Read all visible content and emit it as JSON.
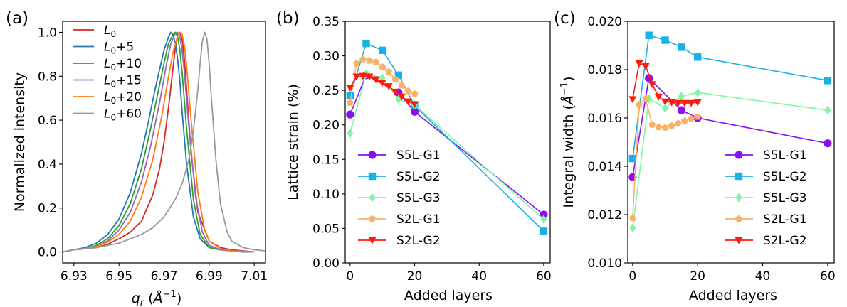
{
  "chart_data": [
    {
      "type": "line",
      "panel_label": "(a)",
      "xlabel": "q_r (Å⁻¹)",
      "ylabel": "Normalized intensity",
      "xlim": [
        6.925,
        7.015
      ],
      "ylim": [
        -0.05,
        1.05
      ],
      "xticks": [
        6.93,
        6.95,
        6.97,
        6.99,
        7.01
      ],
      "xtick_labels": [
        "6.93",
        "6.95",
        "6.97",
        "6.99",
        "7.01"
      ],
      "yticks": [
        0.0,
        0.2,
        0.4,
        0.6,
        0.8,
        1.0
      ],
      "ytick_labels": [
        "0.0",
        "0.2",
        "0.4",
        "0.6",
        "0.8",
        "1.0"
      ],
      "legend_position": "top-left",
      "series": [
        {
          "name": "L0",
          "legend_main": "L",
          "legend_sub": "0",
          "legend_rest": "",
          "color": "#d62728",
          "x": [
            6.925,
            6.93,
            6.935,
            6.94,
            6.945,
            6.95,
            6.955,
            6.96,
            6.965,
            6.968,
            6.97,
            6.972,
            6.974,
            6.975,
            6.976,
            6.977,
            6.978,
            6.979,
            6.98,
            6.982,
            6.985,
            6.99,
            6.995,
            7.0,
            7.005,
            7.01
          ],
          "y": [
            0.0,
            0.01,
            0.015,
            0.02,
            0.035,
            0.06,
            0.09,
            0.14,
            0.26,
            0.38,
            0.5,
            0.66,
            0.84,
            0.93,
            0.99,
            1.0,
            0.97,
            0.88,
            0.74,
            0.45,
            0.18,
            0.05,
            0.02,
            0.01,
            0.005,
            0.0
          ]
        },
        {
          "name": "L0+5",
          "legend_main": "L",
          "legend_sub": "0",
          "legend_rest": "+5",
          "color": "#1f77b4",
          "x": [
            6.925,
            6.93,
            6.935,
            6.94,
            6.945,
            6.95,
            6.955,
            6.96,
            6.963,
            6.966,
            6.968,
            6.97,
            6.972,
            6.973,
            6.974,
            6.975,
            6.976,
            6.977,
            6.978,
            6.98,
            6.983,
            6.986,
            6.99,
            6.995,
            7.0,
            7.005,
            7.01
          ],
          "y": [
            0.0,
            0.01,
            0.02,
            0.04,
            0.08,
            0.15,
            0.27,
            0.45,
            0.59,
            0.74,
            0.83,
            0.92,
            0.98,
            1.0,
            0.99,
            0.95,
            0.88,
            0.78,
            0.64,
            0.4,
            0.16,
            0.06,
            0.02,
            0.01,
            0.005,
            0.0,
            0.0
          ]
        },
        {
          "name": "L0+10",
          "legend_main": "L",
          "legend_sub": "0",
          "legend_rest": "+10",
          "color": "#2ca02c",
          "x": [
            6.925,
            6.93,
            6.935,
            6.94,
            6.945,
            6.95,
            6.955,
            6.96,
            6.964,
            6.967,
            6.97,
            6.972,
            6.974,
            6.975,
            6.976,
            6.977,
            6.978,
            6.98,
            6.983,
            6.986,
            6.99,
            6.995,
            7.0,
            7.01
          ],
          "y": [
            0.0,
            0.01,
            0.015,
            0.03,
            0.06,
            0.12,
            0.22,
            0.38,
            0.56,
            0.71,
            0.86,
            0.95,
            0.99,
            1.0,
            0.98,
            0.92,
            0.82,
            0.56,
            0.24,
            0.08,
            0.02,
            0.01,
            0.005,
            0.0
          ]
        },
        {
          "name": "L0+15",
          "legend_main": "L",
          "legend_sub": "0",
          "legend_rest": "+15",
          "color": "#9467bd",
          "x": [
            6.925,
            6.93,
            6.935,
            6.94,
            6.945,
            6.95,
            6.955,
            6.96,
            6.964,
            6.968,
            6.971,
            6.973,
            6.975,
            6.976,
            6.977,
            6.978,
            6.979,
            6.981,
            6.984,
            6.987,
            6.99,
            6.995,
            7.0,
            7.01
          ],
          "y": [
            0.0,
            0.01,
            0.015,
            0.025,
            0.05,
            0.1,
            0.18,
            0.32,
            0.48,
            0.68,
            0.85,
            0.95,
            0.995,
            1.0,
            0.98,
            0.92,
            0.82,
            0.57,
            0.25,
            0.09,
            0.03,
            0.01,
            0.005,
            0.0
          ]
        },
        {
          "name": "L0+20",
          "legend_main": "L",
          "legend_sub": "0",
          "legend_rest": "+20",
          "color": "#ff7f0e",
          "x": [
            6.925,
            6.93,
            6.935,
            6.94,
            6.945,
            6.95,
            6.955,
            6.96,
            6.965,
            6.969,
            6.972,
            6.974,
            6.976,
            6.977,
            6.978,
            6.979,
            6.98,
            6.982,
            6.985,
            6.988,
            6.99,
            6.995,
            7.0,
            7.01
          ],
          "y": [
            0.0,
            0.01,
            0.015,
            0.025,
            0.045,
            0.08,
            0.14,
            0.25,
            0.42,
            0.62,
            0.8,
            0.91,
            0.98,
            1.0,
            0.99,
            0.94,
            0.85,
            0.6,
            0.27,
            0.1,
            0.05,
            0.015,
            0.005,
            0.0
          ]
        },
        {
          "name": "L0+60",
          "legend_main": "L",
          "legend_sub": "0",
          "legend_rest": "+60",
          "color": "#999999",
          "x": [
            6.925,
            6.93,
            6.935,
            6.94,
            6.945,
            6.95,
            6.955,
            6.96,
            6.965,
            6.97,
            6.975,
            6.978,
            6.981,
            6.983,
            6.985,
            6.986,
            6.987,
            6.988,
            6.989,
            6.99,
            6.991,
            6.993,
            6.995,
            6.998,
            7.0,
            7.005,
            7.01,
            7.015
          ],
          "y": [
            0.0,
            0.01,
            0.015,
            0.02,
            0.03,
            0.04,
            0.06,
            0.08,
            0.11,
            0.16,
            0.24,
            0.31,
            0.42,
            0.55,
            0.74,
            0.86,
            0.96,
            1.0,
            0.97,
            0.86,
            0.7,
            0.42,
            0.22,
            0.09,
            0.05,
            0.02,
            0.01,
            0.005
          ]
        }
      ]
    },
    {
      "type": "line",
      "panel_label": "(b)",
      "xlabel": "Added layers",
      "ylabel": "Lattice strain (%)",
      "xlim": [
        -1.5,
        62
      ],
      "ylim": [
        0.0,
        0.35
      ],
      "xticks": [
        0,
        20,
        40,
        60
      ],
      "xtick_labels": [
        "0",
        "20",
        "40",
        "60"
      ],
      "yticks": [
        0.0,
        0.05,
        0.1,
        0.15,
        0.2,
        0.25,
        0.3,
        0.35
      ],
      "ytick_labels": [
        "0.00",
        "0.05",
        "0.10",
        "0.15",
        "0.20",
        "0.25",
        "0.30",
        "0.35"
      ],
      "legend_position": "lower-left",
      "series": [
        {
          "name": "S5L-G1",
          "color": "#8b10f0",
          "marker": "circle",
          "x": [
            0,
            5,
            15,
            20,
            60
          ],
          "y": [
            0.215,
            0.272,
            0.247,
            0.219,
            0.07
          ]
        },
        {
          "name": "S5L-G2",
          "color": "#1ab0e8",
          "marker": "square",
          "x": [
            0,
            5,
            10,
            15,
            20,
            60
          ],
          "y": [
            0.242,
            0.318,
            0.308,
            0.272,
            0.228,
            0.046
          ]
        },
        {
          "name": "S5L-G3",
          "color": "#80f5a8",
          "marker": "diamond",
          "x": [
            0,
            5,
            10,
            15,
            20,
            60
          ],
          "y": [
            0.188,
            0.274,
            0.268,
            0.237,
            0.229,
            0.063
          ]
        },
        {
          "name": "S2L-G1",
          "color": "#f8b268",
          "marker": "pentagon",
          "x": [
            0,
            2,
            4,
            6,
            8,
            10,
            12,
            14,
            16,
            18,
            20
          ],
          "y": [
            0.232,
            0.289,
            0.295,
            0.293,
            0.291,
            0.284,
            0.277,
            0.266,
            0.257,
            0.249,
            0.245
          ]
        },
        {
          "name": "S2L-G2",
          "color": "#ff1a0a",
          "marker": "triangle-down",
          "x": [
            0,
            2,
            4,
            6,
            8,
            10,
            12,
            14,
            16,
            18,
            20
          ],
          "y": [
            0.254,
            0.27,
            0.271,
            0.27,
            0.266,
            0.261,
            0.256,
            0.248,
            0.241,
            0.234,
            0.23
          ]
        }
      ]
    },
    {
      "type": "line",
      "panel_label": "(c)",
      "xlabel": "Added layers",
      "ylabel": "Integral width (Å⁻¹)",
      "xlim": [
        -1.5,
        62
      ],
      "ylim": [
        0.01,
        0.02
      ],
      "xticks": [
        0,
        20,
        40,
        60
      ],
      "xtick_labels": [
        "0",
        "20",
        "40",
        "60"
      ],
      "yticks": [
        0.01,
        0.012,
        0.014,
        0.016,
        0.018,
        0.02
      ],
      "ytick_labels": [
        "0.010",
        "0.012",
        "0.014",
        "0.016",
        "0.018",
        "0.020"
      ],
      "legend_position": "lower-right",
      "series": [
        {
          "name": "S5L-G1",
          "color": "#8b10f0",
          "marker": "circle",
          "x": [
            0,
            5,
            15,
            20,
            60
          ],
          "y": [
            0.01355,
            0.01765,
            0.01632,
            0.016,
            0.01495
          ]
        },
        {
          "name": "S5L-G2",
          "color": "#1ab0e8",
          "marker": "square",
          "x": [
            0,
            5,
            10,
            15,
            20,
            60
          ],
          "y": [
            0.01432,
            0.01942,
            0.01922,
            0.01893,
            0.01852,
            0.01755
          ]
        },
        {
          "name": "S5L-G3",
          "color": "#80f5a8",
          "marker": "diamond",
          "x": [
            0,
            5,
            10,
            15,
            20,
            60
          ],
          "y": [
            0.01145,
            0.0168,
            0.0164,
            0.0169,
            0.01705,
            0.01632
          ]
        },
        {
          "name": "S2L-G1",
          "color": "#f8b268",
          "marker": "pentagon",
          "x": [
            0,
            2,
            4,
            6,
            8,
            10,
            12,
            14,
            16,
            18,
            20
          ],
          "y": [
            0.01185,
            0.01655,
            0.0168,
            0.01572,
            0.01562,
            0.0156,
            0.01568,
            0.01578,
            0.01588,
            0.01598,
            0.01605
          ]
        },
        {
          "name": "S2L-G2",
          "color": "#ff1a0a",
          "marker": "triangle-down",
          "x": [
            0,
            2,
            4,
            6,
            8,
            10,
            12,
            14,
            16,
            18,
            20
          ],
          "y": [
            0.01678,
            0.01826,
            0.01815,
            0.0174,
            0.01688,
            0.01668,
            0.01665,
            0.01662,
            0.01662,
            0.01662,
            0.01665
          ]
        }
      ]
    }
  ]
}
